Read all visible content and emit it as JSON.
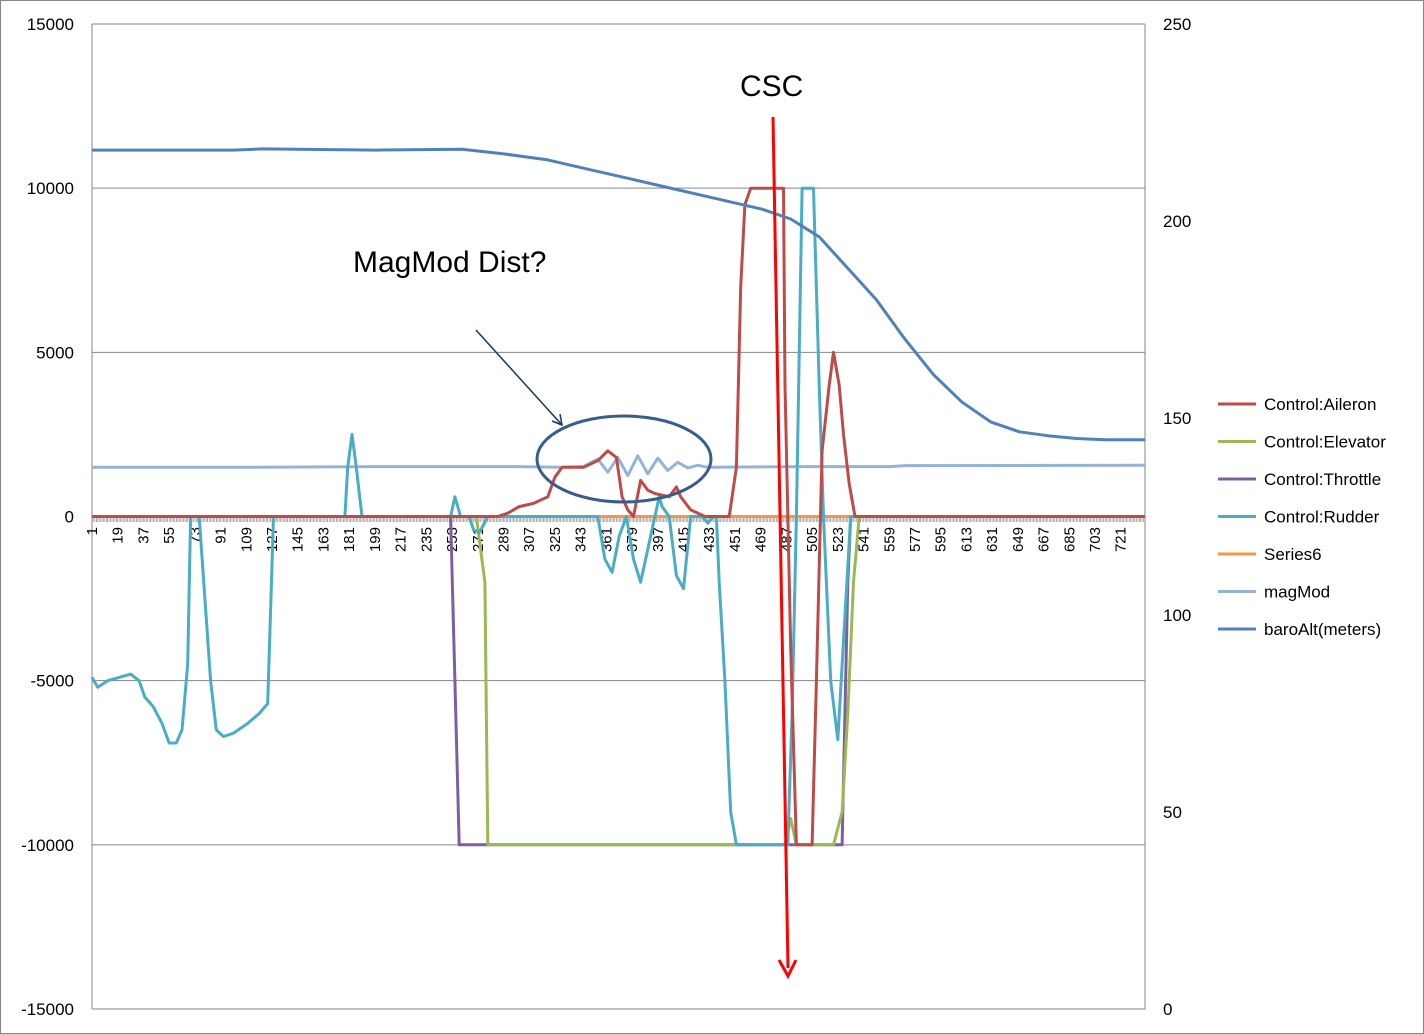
{
  "chart_data": {
    "type": "line",
    "x": {
      "start": 1,
      "end": 738,
      "step": 1
    },
    "xticklabels": [
      "1",
      "19",
      "37",
      "55",
      "73",
      "91",
      "109",
      "127",
      "145",
      "163",
      "181",
      "199",
      "217",
      "235",
      "253",
      "271",
      "289",
      "307",
      "325",
      "343",
      "361",
      "379",
      "397",
      "415",
      "433",
      "451",
      "469",
      "487",
      "505",
      "523",
      "541",
      "559",
      "577",
      "595",
      "613",
      "631",
      "649",
      "667",
      "685",
      "703",
      "721"
    ],
    "y_left": {
      "min": -15000,
      "max": 15000,
      "ticks": [
        15000,
        10000,
        5000,
        0,
        -5000,
        -10000,
        -15000
      ]
    },
    "y_right": {
      "min": 0,
      "max": 250,
      "ticks": [
        250,
        200,
        150,
        100,
        50,
        0
      ]
    },
    "grid": true,
    "legend_position": "right",
    "series": [
      {
        "name": "Control:Aileron",
        "color": "#be4b48",
        "axis": "left",
        "points": [
          [
            1,
            0
          ],
          [
            285,
            0
          ],
          [
            292,
            100
          ],
          [
            300,
            300
          ],
          [
            310,
            400
          ],
          [
            320,
            600
          ],
          [
            325,
            1200
          ],
          [
            330,
            1500
          ],
          [
            345,
            1500
          ],
          [
            355,
            1700
          ],
          [
            362,
            2000
          ],
          [
            368,
            1800
          ],
          [
            372,
            600
          ],
          [
            376,
            200
          ],
          [
            380,
            0
          ],
          [
            385,
            1100
          ],
          [
            390,
            800
          ],
          [
            395,
            700
          ],
          [
            405,
            600
          ],
          [
            410,
            900
          ],
          [
            413,
            600
          ],
          [
            420,
            200
          ],
          [
            430,
            0
          ],
          [
            447,
            0
          ],
          [
            452,
            1500
          ],
          [
            455,
            7000
          ],
          [
            458,
            9500
          ],
          [
            462,
            10000
          ],
          [
            485,
            10000
          ],
          [
            486,
            4000
          ],
          [
            490,
            -4000
          ],
          [
            494,
            -10000
          ],
          [
            505,
            -10000
          ],
          [
            508,
            -5000
          ],
          [
            512,
            2000
          ],
          [
            517,
            4000
          ],
          [
            520,
            5000
          ],
          [
            524,
            4000
          ],
          [
            527,
            2500
          ],
          [
            531,
            1000
          ],
          [
            535,
            0
          ],
          [
            738,
            0
          ]
        ]
      },
      {
        "name": "Control:Elevator",
        "color": "#98b954",
        "axis": "left",
        "points": [
          [
            1,
            0
          ],
          [
            270,
            0
          ],
          [
            276,
            -2000
          ],
          [
            278,
            -10000
          ],
          [
            486,
            -10000
          ],
          [
            490,
            -9200
          ],
          [
            494,
            -10000
          ],
          [
            520,
            -10000
          ],
          [
            526,
            -9000
          ],
          [
            530,
            -6000
          ],
          [
            534,
            -2000
          ],
          [
            538,
            0
          ],
          [
            738,
            0
          ]
        ]
      },
      {
        "name": "Control:Throttle",
        "color": "#7d5fa0",
        "axis": "left",
        "points": [
          [
            1,
            0
          ],
          [
            252,
            0
          ],
          [
            258,
            -10000
          ],
          [
            526,
            -10000
          ],
          [
            530,
            -2000
          ],
          [
            532,
            0
          ],
          [
            738,
            0
          ]
        ]
      },
      {
        "name": "Control:Rudder",
        "color": "#4bacc6",
        "axis": "left",
        "points": [
          [
            1,
            -4900
          ],
          [
            5,
            -5200
          ],
          [
            12,
            -5000
          ],
          [
            20,
            -4900
          ],
          [
            28,
            -4800
          ],
          [
            34,
            -5000
          ],
          [
            38,
            -5500
          ],
          [
            44,
            -5800
          ],
          [
            50,
            -6300
          ],
          [
            55,
            -6900
          ],
          [
            60,
            -6900
          ],
          [
            64,
            -6500
          ],
          [
            68,
            -4500
          ],
          [
            70,
            0
          ],
          [
            72,
            0
          ],
          [
            76,
            0
          ],
          [
            80,
            -2500
          ],
          [
            84,
            -5000
          ],
          [
            88,
            -6500
          ],
          [
            93,
            -6700
          ],
          [
            100,
            -6600
          ],
          [
            110,
            -6300
          ],
          [
            118,
            -6000
          ],
          [
            124,
            -5700
          ],
          [
            128,
            0
          ],
          [
            178,
            0
          ],
          [
            180,
            1500
          ],
          [
            183,
            2500
          ],
          [
            186,
            1500
          ],
          [
            190,
            0
          ],
          [
            252,
            0
          ],
          [
            255,
            600
          ],
          [
            259,
            0
          ],
          [
            265,
            0
          ],
          [
            268,
            -400
          ],
          [
            272,
            -500
          ],
          [
            278,
            0
          ],
          [
            355,
            0
          ],
          [
            360,
            -1300
          ],
          [
            365,
            -1700
          ],
          [
            370,
            -600
          ],
          [
            375,
            0
          ],
          [
            380,
            -1300
          ],
          [
            385,
            -2000
          ],
          [
            390,
            -1000
          ],
          [
            395,
            0
          ],
          [
            398,
            600
          ],
          [
            400,
            300
          ],
          [
            405,
            0
          ],
          [
            410,
            -1800
          ],
          [
            415,
            -2200
          ],
          [
            420,
            0
          ],
          [
            428,
            0
          ],
          [
            432,
            -200
          ],
          [
            436,
            0
          ],
          [
            438,
            0
          ],
          [
            440,
            -2000
          ],
          [
            444,
            -5000
          ],
          [
            448,
            -9000
          ],
          [
            452,
            -10000
          ],
          [
            488,
            -10000
          ],
          [
            491,
            -6000
          ],
          [
            494,
            0
          ],
          [
            498,
            10000
          ],
          [
            506,
            10000
          ],
          [
            510,
            4000
          ],
          [
            513,
            0
          ],
          [
            518,
            -5000
          ],
          [
            523,
            -6800
          ],
          [
            528,
            -3000
          ],
          [
            532,
            0
          ],
          [
            738,
            0
          ]
        ]
      },
      {
        "name": "Series6",
        "color": "#f79646",
        "axis": "left",
        "points": [
          [
            1,
            0
          ],
          [
            738,
            0
          ]
        ]
      },
      {
        "name": "magMod",
        "color": "#95b3d7",
        "axis": "left",
        "points": [
          [
            1,
            1500
          ],
          [
            100,
            1500
          ],
          [
            200,
            1520
          ],
          [
            300,
            1520
          ],
          [
            330,
            1500
          ],
          [
            345,
            1520
          ],
          [
            355,
            1750
          ],
          [
            362,
            1350
          ],
          [
            369,
            1800
          ],
          [
            376,
            1250
          ],
          [
            383,
            1850
          ],
          [
            390,
            1300
          ],
          [
            397,
            1780
          ],
          [
            404,
            1400
          ],
          [
            411,
            1650
          ],
          [
            418,
            1480
          ],
          [
            425,
            1560
          ],
          [
            432,
            1500
          ],
          [
            500,
            1520
          ],
          [
            560,
            1520
          ],
          [
            570,
            1550
          ],
          [
            738,
            1560
          ]
        ]
      },
      {
        "name": "baroAlt(meters)",
        "color": "#4f81bd",
        "axis": "right",
        "points": [
          [
            1,
            218
          ],
          [
            100,
            218
          ],
          [
            120,
            218.3
          ],
          [
            200,
            218
          ],
          [
            260,
            218.2
          ],
          [
            290,
            217
          ],
          [
            320,
            215.5
          ],
          [
            350,
            213
          ],
          [
            380,
            210.5
          ],
          [
            410,
            208
          ],
          [
            440,
            205.5
          ],
          [
            470,
            203
          ],
          [
            490,
            200.5
          ],
          [
            510,
            196
          ],
          [
            530,
            188
          ],
          [
            550,
            180
          ],
          [
            570,
            170
          ],
          [
            590,
            161
          ],
          [
            610,
            154
          ],
          [
            630,
            149
          ],
          [
            650,
            146.5
          ],
          [
            670,
            145.5
          ],
          [
            690,
            144.8
          ],
          [
            710,
            144.5
          ],
          [
            738,
            144.5
          ]
        ]
      }
    ],
    "annotations": [
      {
        "text": "CSC"
      },
      {
        "text": "MagMod Dist?"
      }
    ]
  }
}
